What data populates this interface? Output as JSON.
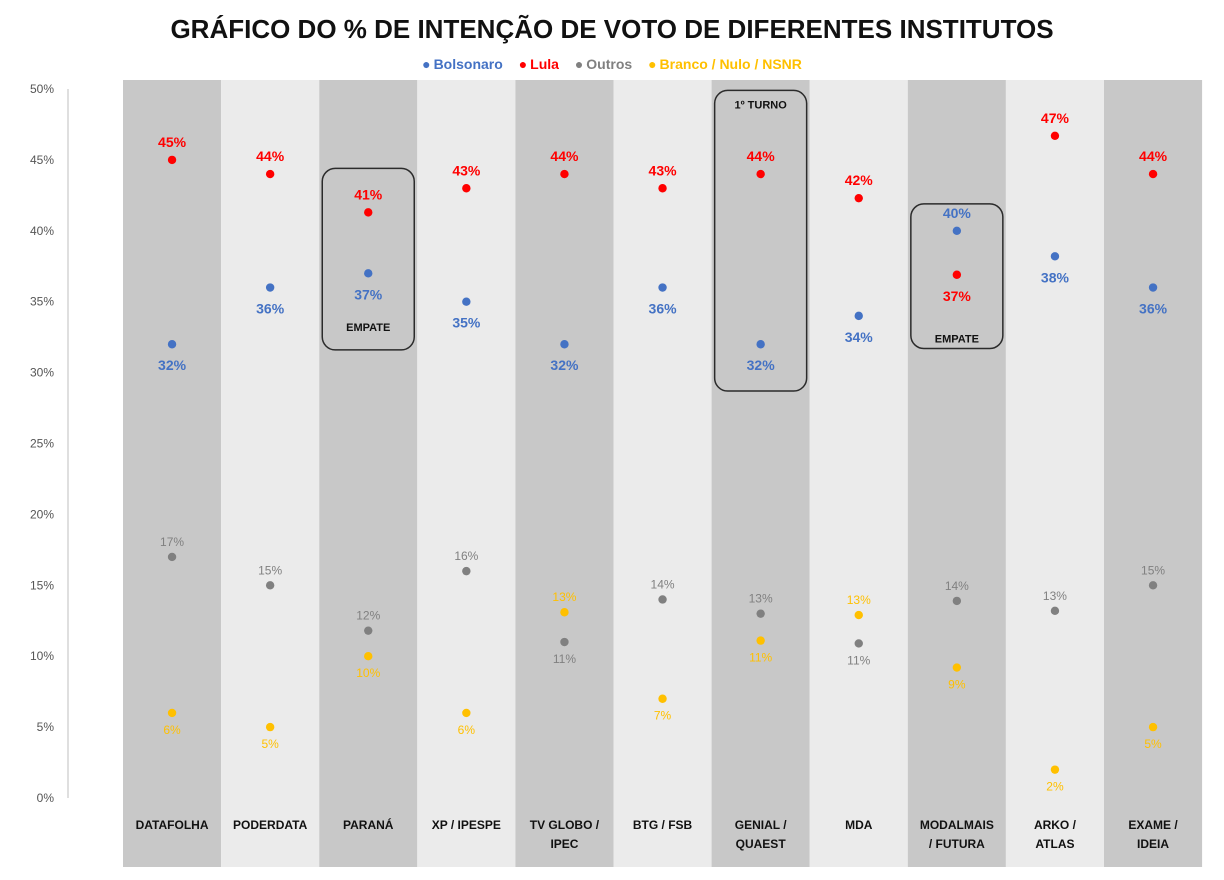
{
  "chart_data": {
    "type": "scatter",
    "title": "GRÁFICO DO % DE INTENÇÃO DE VOTO DE DIFERENTES INSTITUTOS",
    "legend_position": "top-center",
    "ylim": [
      0,
      50
    ],
    "yticks": [
      "0%",
      "5%",
      "10%",
      "15%",
      "20%",
      "25%",
      "30%",
      "35%",
      "40%",
      "45%",
      "50%"
    ],
    "ytick_values": [
      0,
      5,
      10,
      15,
      20,
      25,
      30,
      35,
      40,
      45,
      50
    ],
    "categories": [
      {
        "line1": "DATAFOLHA",
        "line2": ""
      },
      {
        "line1": "PODERDATA",
        "line2": ""
      },
      {
        "line1": "PARANÁ",
        "line2": ""
      },
      {
        "line1": "XP / IPESPE",
        "line2": ""
      },
      {
        "line1": "TV GLOBO /",
        "line2": "IPEC"
      },
      {
        "line1": "BTG  / FSB",
        "line2": ""
      },
      {
        "line1": "GENIAL /",
        "line2": "QUAEST"
      },
      {
        "line1": "MDA",
        "line2": ""
      },
      {
        "line1": "MODALMAIS",
        "line2": "/ FUTURA"
      },
      {
        "line1": "ARKO /",
        "line2": "ATLAS"
      },
      {
        "line1": "EXAME /",
        "line2": "IDEIA"
      }
    ],
    "series": [
      {
        "name": "Bolsonaro",
        "color": "#4472C4",
        "label_style": "big",
        "values": [
          32,
          36,
          37,
          35,
          32,
          36,
          32,
          34,
          40,
          38.2,
          36
        ],
        "labels": [
          "32%",
          "36%",
          "37%",
          "35%",
          "32%",
          "36%",
          "32%",
          "34%",
          "40%",
          "38%",
          "36%"
        ],
        "label_pos": [
          "below",
          "below",
          "below",
          "below",
          "below",
          "below",
          "below",
          "below",
          "above",
          "below",
          "below"
        ]
      },
      {
        "name": "Lula",
        "color": "#FF0000",
        "label_style": "big",
        "values": [
          45,
          44,
          41.3,
          43,
          44,
          43,
          44,
          42.3,
          36.9,
          46.7,
          44
        ],
        "labels": [
          "45%",
          "44%",
          "41%",
          "43%",
          "44%",
          "43%",
          "44%",
          "42%",
          "37%",
          "47%",
          "44%"
        ],
        "label_pos": [
          "above",
          "above",
          "above",
          "above",
          "above",
          "above",
          "above",
          "above",
          "below",
          "above",
          "above"
        ]
      },
      {
        "name": "Outros",
        "color": "#808080",
        "label_style": "small",
        "values": [
          17,
          15,
          11.8,
          16,
          11,
          14,
          13,
          10.9,
          13.9,
          13.2,
          15
        ],
        "labels": [
          "17%",
          "15%",
          "12%",
          "16%",
          "11%",
          "14%",
          "13%",
          "11%",
          "14%",
          "13%",
          "15%"
        ],
        "label_pos": [
          "above",
          "above",
          "above",
          "above",
          "below",
          "above",
          "above",
          "below",
          "above",
          "above",
          "above"
        ]
      },
      {
        "name": "Branco / Nulo / NSNR",
        "color": "#FFC000",
        "label_style": "small",
        "values": [
          6,
          5,
          10,
          6,
          13.1,
          7,
          11.1,
          12.9,
          9.2,
          2,
          5
        ],
        "labels": [
          "6%",
          "5%",
          "10%",
          "6%",
          "13%",
          "7%",
          "11%",
          "13%",
          "9%",
          "2%",
          "5%"
        ],
        "label_pos": [
          "below",
          "below",
          "below",
          "below",
          "above",
          "below",
          "below",
          "above",
          "below",
          "below",
          "below"
        ]
      }
    ],
    "annotations": [
      {
        "category_index": 2,
        "text": "EMPATE",
        "value": 33.2
      },
      {
        "category_index": 6,
        "text": "1º TURNO",
        "value": 48.9
      },
      {
        "category_index": 8,
        "text": "EMPATE",
        "value": 32.4
      }
    ],
    "boxes": [
      {
        "category_index": 2,
        "from": 31.6,
        "to": 44.4
      },
      {
        "category_index": 6,
        "from": 28.7,
        "to": 49.9
      },
      {
        "category_index": 8,
        "from": 31.7,
        "to": 41.9
      }
    ],
    "column_colors": [
      "#C8C8C8",
      "#EBEBEB"
    ],
    "grid": false
  }
}
